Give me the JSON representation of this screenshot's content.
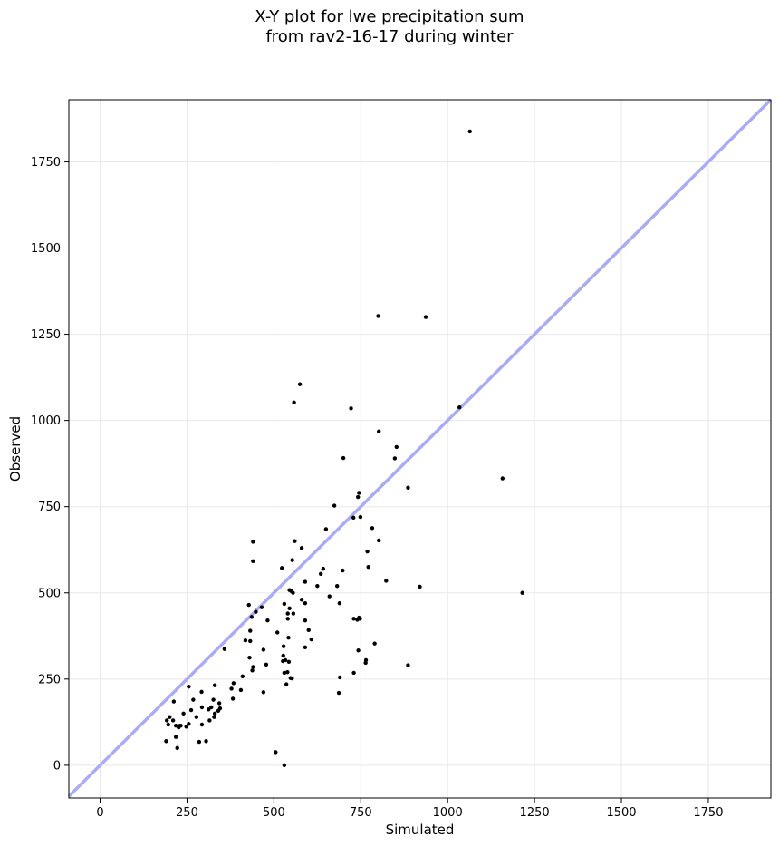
{
  "chart_data": {
    "type": "scatter",
    "title": [
      "X-Y plot for lwe precipitation sum",
      "from rav2-16-17 during winter"
    ],
    "xlabel": "Simulated",
    "ylabel": "Observed",
    "xlim": [
      -90,
      1930
    ],
    "ylim": [
      -95,
      1930
    ],
    "xticks": [
      0,
      250,
      500,
      750,
      1000,
      1250,
      1500,
      1750
    ],
    "yticks": [
      0,
      250,
      500,
      750,
      1000,
      1250,
      1500,
      1750
    ],
    "grid": true,
    "reference_line": {
      "type": "1:1",
      "color": "#a9acf5"
    },
    "point_color": "#000000",
    "points": [
      [
        1064,
        1838
      ],
      [
        800,
        1303
      ],
      [
        937,
        1300
      ],
      [
        1034,
        1038
      ],
      [
        1158,
        832
      ],
      [
        1215,
        500
      ],
      [
        920,
        518
      ],
      [
        886,
        290
      ],
      [
        886,
        805
      ],
      [
        853,
        923
      ],
      [
        848,
        890
      ],
      [
        802,
        968
      ],
      [
        722,
        1035
      ],
      [
        700,
        891
      ],
      [
        575,
        1105
      ],
      [
        558,
        1052
      ],
      [
        674,
        753
      ],
      [
        745,
        790
      ],
      [
        742,
        778
      ],
      [
        729,
        718
      ],
      [
        749,
        720
      ],
      [
        783,
        688
      ],
      [
        802,
        652
      ],
      [
        769,
        620
      ],
      [
        772,
        575
      ],
      [
        823,
        535
      ],
      [
        790,
        353
      ],
      [
        765,
        305
      ],
      [
        764,
        297
      ],
      [
        743,
        333
      ],
      [
        690,
        255
      ],
      [
        687,
        210
      ],
      [
        730,
        268
      ],
      [
        748,
        425
      ],
      [
        745,
        428
      ],
      [
        740,
        422
      ],
      [
        730,
        425
      ],
      [
        689,
        470
      ],
      [
        698,
        565
      ],
      [
        682,
        520
      ],
      [
        660,
        490
      ],
      [
        650,
        685
      ],
      [
        642,
        570
      ],
      [
        635,
        555
      ],
      [
        625,
        520
      ],
      [
        590,
        532
      ],
      [
        580,
        630
      ],
      [
        580,
        480
      ],
      [
        590,
        470
      ],
      [
        600,
        392
      ],
      [
        608,
        365
      ],
      [
        590,
        342
      ],
      [
        590,
        420
      ],
      [
        560,
        650
      ],
      [
        553,
        595
      ],
      [
        550,
        505
      ],
      [
        545,
        508
      ],
      [
        555,
        500
      ],
      [
        540,
        440
      ],
      [
        545,
        455
      ],
      [
        556,
        440
      ],
      [
        540,
        425
      ],
      [
        530,
        468
      ],
      [
        523,
        572
      ],
      [
        528,
        345
      ],
      [
        542,
        370
      ],
      [
        510,
        385
      ],
      [
        527,
        318
      ],
      [
        526,
        302
      ],
      [
        533,
        305
      ],
      [
        548,
        253
      ],
      [
        552,
        252
      ],
      [
        539,
        270
      ],
      [
        530,
        268
      ],
      [
        543,
        300
      ],
      [
        536,
        235
      ],
      [
        530,
        0
      ],
      [
        505,
        38
      ],
      [
        440,
        648
      ],
      [
        440,
        592
      ],
      [
        482,
        420
      ],
      [
        465,
        458
      ],
      [
        470,
        335
      ],
      [
        478,
        292
      ],
      [
        470,
        212
      ],
      [
        448,
        445
      ],
      [
        440,
        285
      ],
      [
        438,
        275
      ],
      [
        428,
        465
      ],
      [
        436,
        430
      ],
      [
        432,
        390
      ],
      [
        432,
        360
      ],
      [
        418,
        362
      ],
      [
        430,
        312
      ],
      [
        410,
        258
      ],
      [
        405,
        218
      ],
      [
        384,
        238
      ],
      [
        378,
        222
      ],
      [
        382,
        193
      ],
      [
        358,
        337
      ],
      [
        343,
        180
      ],
      [
        345,
        165
      ],
      [
        340,
        158
      ],
      [
        330,
        232
      ],
      [
        326,
        190
      ],
      [
        330,
        150
      ],
      [
        328,
        140
      ],
      [
        320,
        168
      ],
      [
        312,
        162
      ],
      [
        315,
        130
      ],
      [
        305,
        70
      ],
      [
        293,
        118
      ],
      [
        293,
        168
      ],
      [
        292,
        213
      ],
      [
        285,
        68
      ],
      [
        277,
        140
      ],
      [
        268,
        190
      ],
      [
        262,
        160
      ],
      [
        255,
        228
      ],
      [
        255,
        120
      ],
      [
        248,
        112
      ],
      [
        240,
        150
      ],
      [
        230,
        115
      ],
      [
        226,
        110
      ],
      [
        232,
        115
      ],
      [
        222,
        50
      ],
      [
        218,
        82
      ],
      [
        218,
        115
      ],
      [
        212,
        185
      ],
      [
        210,
        130
      ],
      [
        200,
        140
      ],
      [
        196,
        118
      ],
      [
        192,
        130
      ],
      [
        190,
        70
      ]
    ]
  }
}
